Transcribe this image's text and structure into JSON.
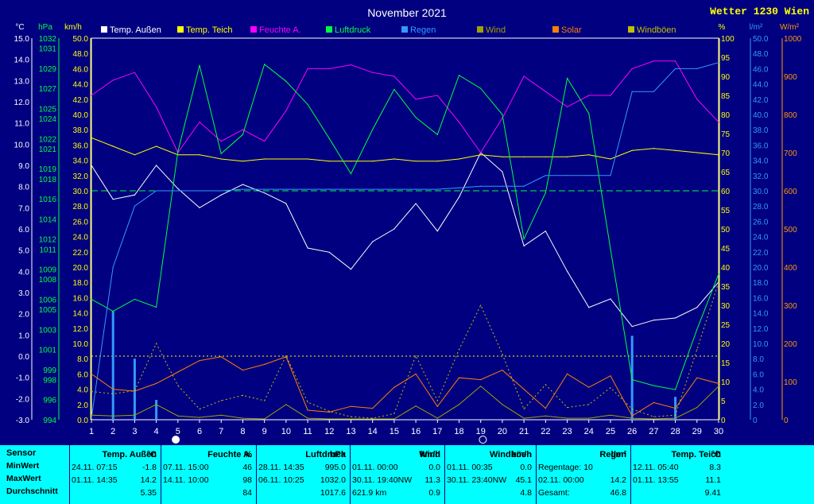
{
  "title": "November 2021",
  "brand": "Wetter 1230 Wien",
  "unit_labels": {
    "temp": "°C",
    "pressure": "hPa",
    "speed": "km/h",
    "percent": "%",
    "rain": "l/m²",
    "solar": "W/m²"
  },
  "colors": {
    "background": "#000080",
    "axis": "#ffffff",
    "grid": "#8080ff",
    "temp_out": "#ffffff",
    "temp_pond": "#ffff00",
    "humidity": "#ff00ff",
    "pressure": "#00ff40",
    "rain": "#3399ff",
    "wind": "#a0a000",
    "solar": "#ff7f00",
    "gust": "#c0c000",
    "pressure_axis": "#00ff40",
    "speed_axis": "#ffff00",
    "percent_axis": "#ffff00",
    "rain_axis": "#3399ff",
    "solar_axis": "#ff9900",
    "stats_bg": "#00ffff"
  },
  "axes": {
    "temp_ticks": [
      "15.0",
      "14.0",
      "13.0",
      "12.0",
      "11.0",
      "10.0",
      "9.0",
      "8.0",
      "7.0",
      "6.0",
      "5.0",
      "4.0",
      "3.0",
      "2.0",
      "1.0",
      "0.0",
      "-1.0",
      "-2.0",
      "-3.0"
    ],
    "pressure_ticks": [
      "1032",
      "1031",
      "1029",
      "1027",
      "1025",
      "1024",
      "1022",
      "1021",
      "1019",
      "1018",
      "1016",
      "1014",
      "1012",
      "1011",
      "1009",
      "1008",
      "1006",
      "1005",
      "1003",
      "1001",
      "999",
      "998",
      "996",
      "994"
    ],
    "speed_ticks": [
      "50.0",
      "48.0",
      "46.0",
      "44.0",
      "42.0",
      "40.0",
      "38.0",
      "36.0",
      "34.0",
      "32.0",
      "30.0",
      "28.0",
      "26.0",
      "24.0",
      "22.0",
      "20.0",
      "18.0",
      "16.0",
      "14.0",
      "12.0",
      "10.0",
      "8.0",
      "6.0",
      "4.0",
      "2.0",
      "0.0"
    ],
    "percent_ticks": [
      "100",
      "95",
      "90",
      "85",
      "80",
      "75",
      "70",
      "65",
      "60",
      "55",
      "50",
      "45",
      "40",
      "35",
      "30",
      "25",
      "20",
      "15",
      "10",
      "5",
      "0"
    ],
    "rain_ticks": [
      "50.0",
      "48.0",
      "46.0",
      "44.0",
      "42.0",
      "40.0",
      "38.0",
      "36.0",
      "34.0",
      "32.0",
      "30.0",
      "28.0",
      "26.0",
      "24.0",
      "22.0",
      "20.0",
      "18.0",
      "16.0",
      "14.0",
      "12.0",
      "10.0",
      "8.0",
      "6.0",
      "4.0",
      "2.0",
      "0"
    ],
    "solar_ticks": [
      "1000",
      "900",
      "800",
      "700",
      "600",
      "500",
      "400",
      "300",
      "200",
      "100",
      "0"
    ],
    "day_ticks": [
      "1",
      "2",
      "3",
      "4",
      "5",
      "6",
      "7",
      "8",
      "9",
      "10",
      "11",
      "12",
      "13",
      "14",
      "15",
      "16",
      "17",
      "18",
      "19",
      "20",
      "21",
      "22",
      "23",
      "24",
      "25",
      "26",
      "27",
      "28",
      "29",
      "30"
    ]
  },
  "chart_data": {
    "type": "line",
    "x": [
      1,
      2,
      3,
      4,
      5,
      6,
      7,
      8,
      9,
      10,
      11,
      12,
      13,
      14,
      15,
      16,
      17,
      18,
      19,
      20,
      21,
      22,
      23,
      24,
      25,
      26,
      27,
      28,
      29,
      30
    ],
    "xlim": [
      1,
      30
    ],
    "axes_ranges": {
      "temp_c": [
        -3,
        15
      ],
      "pressure_hpa": [
        994,
        1032
      ],
      "speed_kmh": [
        0,
        50
      ],
      "percent": [
        0,
        100
      ],
      "rain_lm2": [
        0,
        50
      ],
      "solar_wm2": [
        0,
        1000
      ]
    },
    "series": [
      {
        "name": "Temp. Außen",
        "unit": "°C",
        "values": [
          9.0,
          7.4,
          7.6,
          9.0,
          7.9,
          7.0,
          7.6,
          8.1,
          7.7,
          7.2,
          5.1,
          4.9,
          4.1,
          5.4,
          6.0,
          7.2,
          5.9,
          7.5,
          9.6,
          8.7,
          5.2,
          5.9,
          4.0,
          2.3,
          2.7,
          1.4,
          1.7,
          1.8,
          2.3,
          3.5
        ]
      },
      {
        "name": "Temp. Teich",
        "unit": "°C",
        "values": [
          10.3,
          9.9,
          9.5,
          9.9,
          9.5,
          9.5,
          9.3,
          9.2,
          9.3,
          9.3,
          9.3,
          9.2,
          9.2,
          9.2,
          9.3,
          9.2,
          9.2,
          9.3,
          9.5,
          9.4,
          9.4,
          9.4,
          9.4,
          9.5,
          9.3,
          9.7,
          9.8,
          9.7,
          9.6,
          9.5
        ]
      },
      {
        "name": "Feuchte A.",
        "unit": "%",
        "values": [
          85,
          89,
          91,
          82,
          70,
          78,
          73,
          76,
          73,
          81,
          92,
          92,
          93,
          91,
          90,
          84,
          85,
          78,
          70,
          79,
          90,
          86,
          82,
          85,
          85,
          92,
          94,
          94,
          84,
          78
        ]
      },
      {
        "name": "Luftdruck",
        "unit": "hPa",
        "values": [
          1006.0,
          1004.8,
          1006.0,
          1005.2,
          1020.7,
          1029.3,
          1020.5,
          1022.4,
          1029.4,
          1027.7,
          1025.4,
          1022.0,
          1018.5,
          1022.9,
          1026.9,
          1024.1,
          1022.4,
          1028.3,
          1027.0,
          1024.4,
          1012.0,
          1016.6,
          1028.0,
          1024.5,
          1011.0,
          998.0,
          997.4,
          997.0,
          1003.0,
          1008.5
        ]
      },
      {
        "name": "Regen",
        "unit": "l/m²",
        "values": [
          0.2,
          20.0,
          28.0,
          30.0,
          30.0,
          30.0,
          30.0,
          30.2,
          30.2,
          30.2,
          30.2,
          30.2,
          30.2,
          30.2,
          30.2,
          30.2,
          30.2,
          30.4,
          30.6,
          30.6,
          30.6,
          32.0,
          32.0,
          32.0,
          32.0,
          43.0,
          43.0,
          46.0,
          46.0,
          46.8
        ]
      },
      {
        "name": "Wind",
        "unit": "km/h",
        "values": [
          0.6,
          0.5,
          0.6,
          2.0,
          0.5,
          0.3,
          0.6,
          0.2,
          0.1,
          2.0,
          0.2,
          0.1,
          0.1,
          0.1,
          0.1,
          1.8,
          0.2,
          2.0,
          4.4,
          2.0,
          0.2,
          0.5,
          0.2,
          0.2,
          0.6,
          0.2,
          0.1,
          0.2,
          1.6,
          4.4
        ]
      },
      {
        "name": "Solar",
        "unit": "W/m²",
        "values": [
          120,
          80,
          75,
          95,
          125,
          155,
          165,
          130,
          145,
          165,
          25,
          20,
          35,
          30,
          85,
          120,
          35,
          110,
          105,
          130,
          80,
          30,
          120,
          85,
          115,
          10,
          45,
          30,
          110,
          95
        ]
      },
      {
        "name": "Windböen",
        "unit": "km/h",
        "values": [
          3.7,
          3.4,
          3.8,
          10.0,
          4.5,
          1.4,
          2.5,
          3.2,
          2.5,
          8.4,
          2.3,
          1.1,
          0.4,
          0.2,
          0.8,
          8.4,
          2.5,
          9.2,
          15.0,
          8.6,
          1.4,
          4.6,
          1.6,
          2.0,
          4.2,
          1.4,
          0.4,
          0.6,
          9.2,
          18.0
        ]
      }
    ],
    "daily_rain": {
      "name": "Regen (Tag)",
      "unit": "l/m²",
      "days": [
        2,
        3,
        4,
        26,
        28
      ],
      "values": [
        14.2,
        8.0,
        2.6,
        11.0,
        3.0
      ]
    },
    "reference_lines": [
      {
        "series": "Regen",
        "value": 30.0,
        "style": "dashed"
      },
      {
        "series": "Temp. Außen",
        "value": 0.0,
        "style": "dotted"
      }
    ],
    "moon_markers": [
      {
        "day": 4.9,
        "symbol": "full"
      },
      {
        "day": 19.1,
        "symbol": "new"
      }
    ],
    "legend_position": "top",
    "grid": true
  },
  "stats": {
    "row_labels": [
      "Sensor",
      "MinWert",
      "MaxWert",
      "Durchschnitt"
    ],
    "columns": [
      {
        "name": "Temp. Außen",
        "unit": "°C",
        "min_time": "24.11.  07:15",
        "min": "-1.8",
        "max_time": "01.11.  14:35",
        "max": "14.2",
        "avg": "5.35"
      },
      {
        "name": "Feuchte A.",
        "unit": "%",
        "min_time": "07.11.  15:00",
        "min": "46",
        "max_time": "14.11.  10:00",
        "max": "98",
        "avg": "84"
      },
      {
        "name": "Luftdruck",
        "unit": "hPa",
        "min_time": "28.11.  14:35",
        "min": "995.0",
        "max_time": "06.11.  10:25",
        "max": "1032.0",
        "avg": "1017.6"
      },
      {
        "name": "Wind",
        "unit": "km/h",
        "min_time": "01.11.  00:00",
        "min": "0.0",
        "max_time": "30.11.  19:40NW",
        "max": "11.3",
        "avg_left": "621.9 km",
        "avg": "0.9"
      },
      {
        "name": "Windböen",
        "unit": "km/h",
        "min_time": "01.11.  00:35",
        "min": "0.0",
        "max_time": "30.11.  23:40NW",
        "max": "45.1",
        "avg": "4.8"
      },
      {
        "name": "Regen",
        "unit": "l/m²",
        "min_time": "Regentage: 10",
        "min": "",
        "max_time": "02.11.  00:00",
        "max": "14.2",
        "avg_left": "Gesamt:",
        "avg": "46.8"
      },
      {
        "name": "Temp. Teich",
        "unit": "°C",
        "min_time": "12.11.  05:40",
        "min": "8.3",
        "max_time": "01.11.  13:55",
        "max": "11.1",
        "avg": "9.41"
      }
    ]
  }
}
